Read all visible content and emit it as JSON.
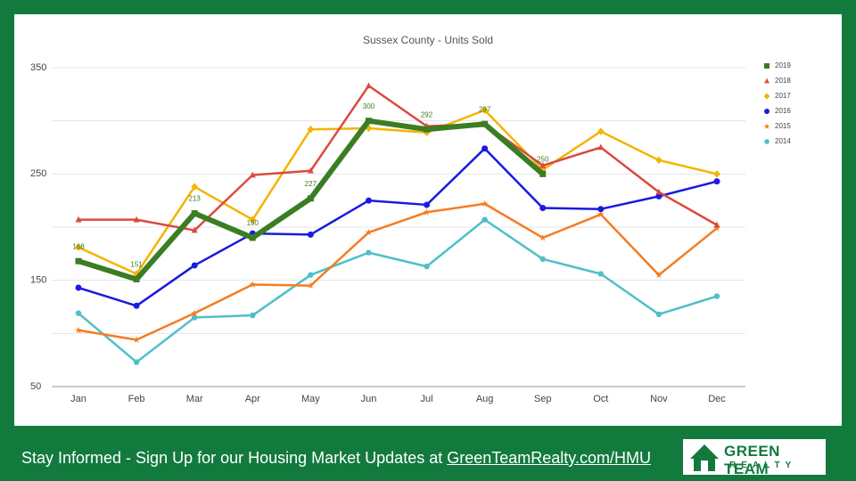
{
  "chart_data": {
    "type": "line",
    "title": "Sussex County - Units Sold",
    "categories": [
      "Jan",
      "Feb",
      "Mar",
      "Apr",
      "May",
      "Jun",
      "Jul",
      "Aug",
      "Sep",
      "Oct",
      "Nov",
      "Dec"
    ],
    "ylim": [
      50,
      350
    ],
    "yticks": [
      50,
      150,
      250,
      350
    ],
    "minor_yticks": [
      100,
      200,
      300
    ],
    "grid": true,
    "legend": "right",
    "series": [
      {
        "name": "2019",
        "color": "#3b7d23",
        "marker": "square",
        "width": 6,
        "data_labels": true,
        "values": [
          168,
          151,
          213,
          190,
          227,
          300,
          292,
          297,
          250,
          null,
          null,
          null
        ]
      },
      {
        "name": "2018",
        "color": "#dc4a3e",
        "marker": "triangle",
        "width": 2.5,
        "values": [
          207,
          207,
          197,
          249,
          253,
          333,
          295,
          297,
          258,
          275,
          233,
          202
        ]
      },
      {
        "name": "2017",
        "color": "#f4b400",
        "marker": "diamond",
        "width": 2.5,
        "values": [
          181,
          156,
          238,
          207,
          292,
          293,
          289,
          310,
          254,
          290,
          263,
          250
        ]
      },
      {
        "name": "2016",
        "color": "#1a1ae0",
        "marker": "circle",
        "width": 2.5,
        "values": [
          143,
          126,
          164,
          194,
          193,
          225,
          221,
          274,
          218,
          217,
          229,
          243
        ]
      },
      {
        "name": "2015",
        "color": "#f57c22",
        "marker": "star",
        "width": 2.5,
        "values": [
          103,
          94,
          119,
          146,
          145,
          195,
          214,
          222,
          190,
          212,
          155,
          199
        ]
      },
      {
        "name": "2014",
        "color": "#4fbfc8",
        "marker": "hexagon",
        "width": 2.5,
        "values": [
          119,
          73,
          115,
          117,
          155,
          176,
          163,
          207,
          170,
          156,
          118,
          135
        ]
      }
    ]
  },
  "footer": {
    "text": "Stay Informed - Sign Up for our Housing Market Updates at",
    "link": "GreenTeamRealty.com/HMU"
  },
  "logo": {
    "line1": "GREEN TEAM",
    "line2": "REALTY"
  }
}
